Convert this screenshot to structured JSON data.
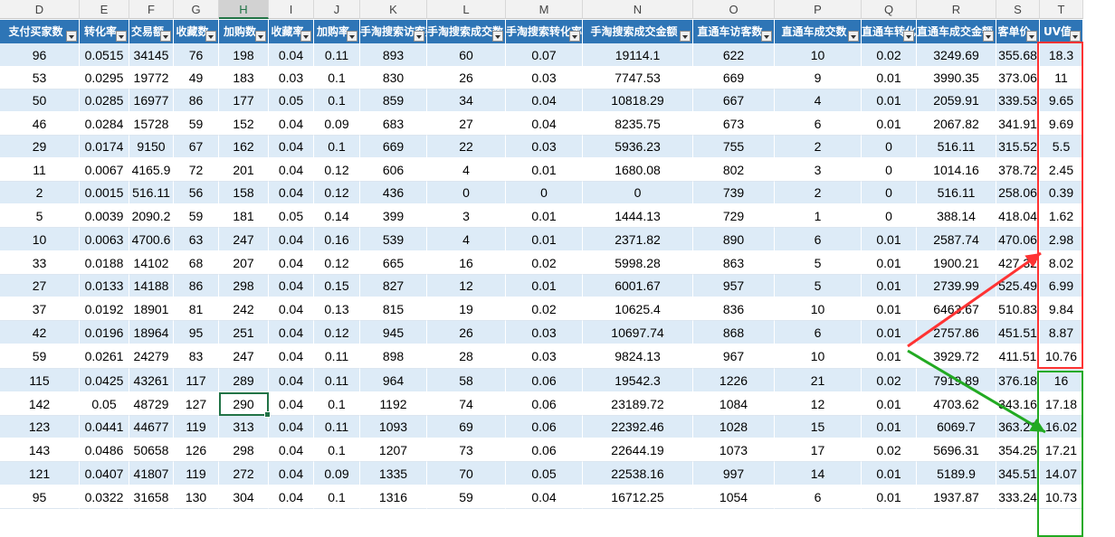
{
  "column_letters": [
    "D",
    "E",
    "F",
    "G",
    "H",
    "I",
    "J",
    "K",
    "L",
    "M",
    "N",
    "O",
    "P",
    "Q",
    "R",
    "S",
    "T"
  ],
  "selected_column": "H",
  "headers": [
    "支付买家数",
    "转化率",
    "交易额",
    "收藏数",
    "加购数",
    "收藏率",
    "加购率",
    "手淘搜索访客数",
    "手淘搜索成交数",
    "手淘搜索转化率",
    "手淘搜索成交金额",
    "直通车访客数",
    "直通车成交数",
    "直通车转化率",
    "直通车成交金额",
    "客单价",
    "UV值"
  ],
  "rows": [
    [
      "96",
      "0.0515",
      "34145",
      "76",
      "198",
      "0.04",
      "0.11",
      "893",
      "60",
      "0.07",
      "19114.1",
      "622",
      "10",
      "0.02",
      "3249.69",
      "355.68",
      "18.3"
    ],
    [
      "53",
      "0.0295",
      "19772",
      "49",
      "183",
      "0.03",
      "0.1",
      "830",
      "26",
      "0.03",
      "7747.53",
      "669",
      "9",
      "0.01",
      "3990.35",
      "373.06",
      "11"
    ],
    [
      "50",
      "0.0285",
      "16977",
      "86",
      "177",
      "0.05",
      "0.1",
      "859",
      "34",
      "0.04",
      "10818.29",
      "667",
      "4",
      "0.01",
      "2059.91",
      "339.53",
      "9.65"
    ],
    [
      "46",
      "0.0284",
      "15728",
      "59",
      "152",
      "0.04",
      "0.09",
      "683",
      "27",
      "0.04",
      "8235.75",
      "673",
      "6",
      "0.01",
      "2067.82",
      "341.91",
      "9.69"
    ],
    [
      "29",
      "0.0174",
      "9150",
      "67",
      "162",
      "0.04",
      "0.1",
      "669",
      "22",
      "0.03",
      "5936.23",
      "755",
      "2",
      "0",
      "516.11",
      "315.52",
      "5.5"
    ],
    [
      "11",
      "0.0067",
      "4165.9",
      "72",
      "201",
      "0.04",
      "0.12",
      "606",
      "4",
      "0.01",
      "1680.08",
      "802",
      "3",
      "0",
      "1014.16",
      "378.72",
      "2.45"
    ],
    [
      "2",
      "0.0015",
      "516.11",
      "56",
      "158",
      "0.04",
      "0.12",
      "436",
      "0",
      "0",
      "0",
      "739",
      "2",
      "0",
      "516.11",
      "258.06",
      "0.39"
    ],
    [
      "5",
      "0.0039",
      "2090.2",
      "59",
      "181",
      "0.05",
      "0.14",
      "399",
      "3",
      "0.01",
      "1444.13",
      "729",
      "1",
      "0",
      "388.14",
      "418.04",
      "1.62"
    ],
    [
      "10",
      "0.0063",
      "4700.6",
      "63",
      "247",
      "0.04",
      "0.16",
      "539",
      "4",
      "0.01",
      "2371.82",
      "890",
      "6",
      "0.01",
      "2587.74",
      "470.06",
      "2.98"
    ],
    [
      "33",
      "0.0188",
      "14102",
      "68",
      "207",
      "0.04",
      "0.12",
      "665",
      "16",
      "0.02",
      "5998.28",
      "863",
      "5",
      "0.01",
      "1900.21",
      "427.32",
      "8.02"
    ],
    [
      "27",
      "0.0133",
      "14188",
      "86",
      "298",
      "0.04",
      "0.15",
      "827",
      "12",
      "0.01",
      "6001.67",
      "957",
      "5",
      "0.01",
      "2739.99",
      "525.49",
      "6.99"
    ],
    [
      "37",
      "0.0192",
      "18901",
      "81",
      "242",
      "0.04",
      "0.13",
      "815",
      "19",
      "0.02",
      "10625.4",
      "836",
      "10",
      "0.01",
      "6463.67",
      "510.83",
      "9.84"
    ],
    [
      "42",
      "0.0196",
      "18964",
      "95",
      "251",
      "0.04",
      "0.12",
      "945",
      "26",
      "0.03",
      "10697.74",
      "868",
      "6",
      "0.01",
      "2757.86",
      "451.51",
      "8.87"
    ],
    [
      "59",
      "0.0261",
      "24279",
      "83",
      "247",
      "0.04",
      "0.11",
      "898",
      "28",
      "0.03",
      "9824.13",
      "967",
      "10",
      "0.01",
      "3929.72",
      "411.51",
      "10.76"
    ],
    [
      "115",
      "0.0425",
      "43261",
      "117",
      "289",
      "0.04",
      "0.11",
      "964",
      "58",
      "0.06",
      "19542.3",
      "1226",
      "21",
      "0.02",
      "7919.89",
      "376.18",
      "16"
    ],
    [
      "142",
      "0.05",
      "48729",
      "127",
      "290",
      "0.04",
      "0.1",
      "1192",
      "74",
      "0.06",
      "23189.72",
      "1084",
      "12",
      "0.01",
      "4703.62",
      "343.16",
      "17.18"
    ],
    [
      "123",
      "0.0441",
      "44677",
      "119",
      "313",
      "0.04",
      "0.11",
      "1093",
      "69",
      "0.06",
      "22392.46",
      "1028",
      "15",
      "0.01",
      "6069.7",
      "363.23",
      "16.02"
    ],
    [
      "143",
      "0.0486",
      "50658",
      "126",
      "298",
      "0.04",
      "0.1",
      "1207",
      "73",
      "0.06",
      "22644.19",
      "1073",
      "17",
      "0.02",
      "5696.31",
      "354.25",
      "17.21"
    ],
    [
      "121",
      "0.0407",
      "41807",
      "119",
      "272",
      "0.04",
      "0.09",
      "1335",
      "70",
      "0.05",
      "22538.16",
      "997",
      "14",
      "0.01",
      "5189.9",
      "345.51",
      "14.07"
    ],
    [
      "95",
      "0.0322",
      "31658",
      "130",
      "304",
      "0.04",
      "0.1",
      "1316",
      "59",
      "0.04",
      "16712.25",
      "1054",
      "6",
      "0.01",
      "1937.87",
      "333.24",
      "10.73"
    ]
  ],
  "annotation_colors": {
    "red": "#ff3333",
    "green": "#22aa22"
  }
}
